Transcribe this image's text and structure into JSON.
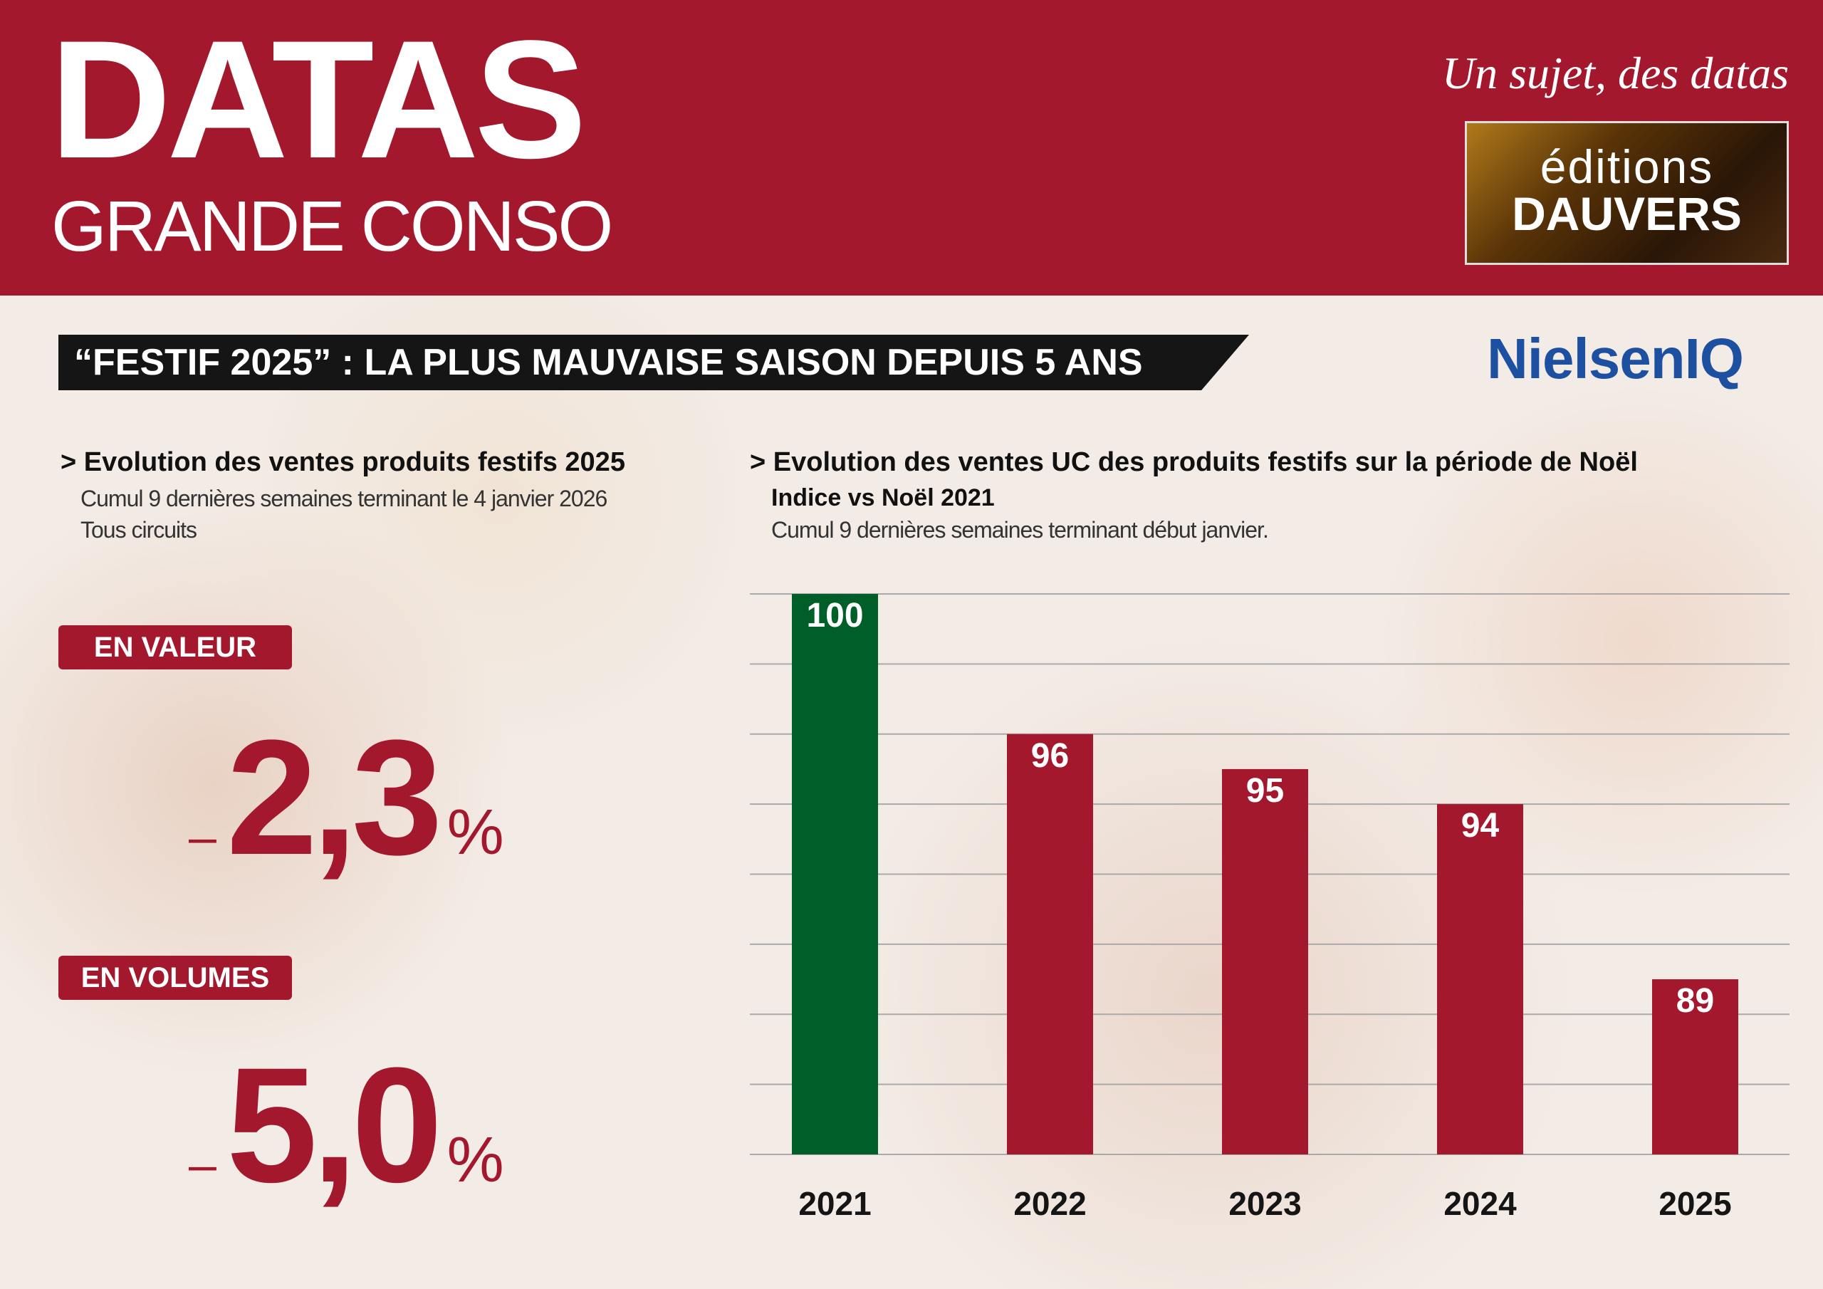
{
  "header": {
    "brand_main": "DATAS",
    "brand_sub": "GRANDE CONSO",
    "tagline": "Un sujet, des datas",
    "publisher_line1": "éditions",
    "publisher_line2": "DAUVERS"
  },
  "title": "“FESTIF 2025” : LA PLUS MAUVAISE SAISON DEPUIS 5 ANS",
  "source_logo": "NielsenIQ",
  "left": {
    "heading": "> Evolution des ventes produits festifs 2025",
    "sub1": "Cumul 9 dernières semaines terminant le 4 janvier 2026",
    "sub2": "Tous circuits",
    "value_label": "EN VALEUR",
    "value_sign": "–",
    "value": "2,3",
    "value_unit": "%",
    "volume_label": "EN VOLUMES",
    "volume_sign": "–",
    "volume": "5,0",
    "volume_unit": "%"
  },
  "right": {
    "heading": "> Evolution des ventes UC des produits festifs sur la période de Noël",
    "sub_bold": "Indice vs Noël 2021",
    "sub": "Cumul 9 dernières semaines terminant début janvier."
  },
  "colors": {
    "brand_red": "#a3182d",
    "green": "#005f28",
    "dark": "#151515"
  },
  "chart_data": {
    "type": "bar",
    "title": "Evolution des ventes UC des produits festifs sur la période de Noël",
    "categories": [
      "2021",
      "2022",
      "2023",
      "2024",
      "2025"
    ],
    "values": [
      100,
      96,
      95,
      94,
      89
    ],
    "bar_colors": [
      "#005f28",
      "#a3182d",
      "#a3182d",
      "#a3182d",
      "#a3182d"
    ],
    "ylim": [
      84,
      100
    ],
    "grid": true,
    "gridlines": [
      84,
      86,
      88,
      90,
      92,
      94,
      96,
      98,
      100
    ],
    "xlabel": "",
    "ylabel": "Indice vs Noël 2021"
  }
}
